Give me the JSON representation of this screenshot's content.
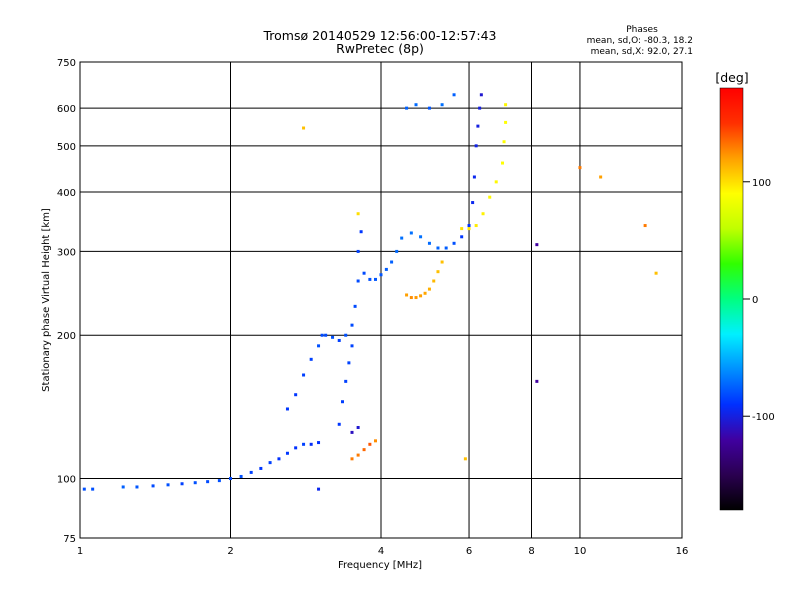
{
  "chart_data": {
    "type": "scatter",
    "title": "Tromsø 20140529 12:56:00-12:57:43",
    "subtitle": "RwPretec (8p)",
    "xlabel": "Frequency [MHz]",
    "ylabel": "Stationary phase Virtual Height [km]",
    "x_scale": "log",
    "y_scale": "log",
    "xlim": [
      1,
      16
    ],
    "ylim": [
      75,
      750
    ],
    "x_ticks": [
      1,
      2,
      4,
      6,
      8,
      10,
      16
    ],
    "y_ticks": [
      75,
      100,
      200,
      300,
      400,
      500,
      600,
      750
    ],
    "grid": true,
    "stats": {
      "heading": "Phases",
      "line_o": "mean, sd,O: -80.3, 18.2",
      "line_x": "mean, sd,X:  92.0, 27.1"
    },
    "colorbar": {
      "label": "[deg]",
      "range": [
        -180,
        180
      ],
      "ticks": [
        "100",
        "0",
        "-100"
      ],
      "tick_values": [
        100,
        0,
        -100
      ],
      "colors": [
        "#000000",
        "#2a0050",
        "#4000a0",
        "#0030ff",
        "#0090ff",
        "#00f0ff",
        "#00ff80",
        "#30ff00",
        "#c0ff00",
        "#ffff00",
        "#ffa000",
        "#ff3000",
        "#ff0000"
      ]
    },
    "series": [
      {
        "points": [
          [
            1.02,
            95,
            -80
          ],
          [
            1.06,
            95,
            -80
          ],
          [
            1.22,
            96,
            -75
          ],
          [
            1.3,
            96,
            -78
          ],
          [
            1.4,
            96.5,
            -82
          ],
          [
            1.5,
            97,
            -80
          ],
          [
            1.6,
            97.5,
            -85
          ],
          [
            1.7,
            98,
            -80
          ],
          [
            1.8,
            98.5,
            -82
          ],
          [
            1.9,
            99,
            -80
          ],
          [
            2.0,
            100,
            -82
          ],
          [
            2.1,
            101,
            -80
          ],
          [
            2.2,
            103,
            -85
          ],
          [
            2.3,
            105,
            -88
          ],
          [
            2.4,
            108,
            -85
          ],
          [
            2.5,
            110,
            -90
          ],
          [
            2.6,
            113,
            -88
          ],
          [
            2.7,
            116,
            -90
          ],
          [
            2.8,
            118,
            -85
          ],
          [
            2.9,
            118,
            -92
          ],
          [
            3.0,
            119,
            -90
          ],
          [
            2.6,
            140,
            -88
          ],
          [
            2.7,
            150,
            -88
          ],
          [
            2.8,
            165,
            -85
          ],
          [
            2.9,
            178,
            -85
          ],
          [
            3.0,
            190,
            -80
          ],
          [
            3.05,
            200,
            -82
          ],
          [
            3.1,
            200,
            -82
          ],
          [
            3.2,
            198,
            -80
          ],
          [
            3.3,
            195,
            -85
          ],
          [
            3.4,
            200,
            -80
          ],
          [
            3.3,
            130,
            -88
          ],
          [
            3.35,
            145,
            -86
          ],
          [
            3.4,
            160,
            -85
          ],
          [
            3.45,
            175,
            -84
          ],
          [
            3.5,
            190,
            -84
          ],
          [
            3.5,
            210,
            -82
          ],
          [
            3.55,
            230,
            -82
          ],
          [
            3.6,
            260,
            -82
          ],
          [
            3.6,
            300,
            -85
          ],
          [
            3.65,
            330,
            -88
          ],
          [
            3.7,
            270,
            -82
          ],
          [
            3.8,
            262,
            -80
          ],
          [
            3.9,
            262,
            -78
          ],
          [
            4.0,
            268,
            -78
          ],
          [
            4.1,
            275,
            -76
          ],
          [
            4.2,
            285,
            -75
          ],
          [
            4.3,
            300,
            -72
          ],
          [
            4.4,
            320,
            -70
          ],
          [
            4.6,
            328,
            -70
          ],
          [
            4.8,
            322,
            -70
          ],
          [
            5.0,
            312,
            -72
          ],
          [
            5.2,
            305,
            -74
          ],
          [
            5.4,
            305,
            -76
          ],
          [
            5.6,
            312,
            -80
          ],
          [
            5.8,
            322,
            -88
          ],
          [
            6.0,
            340,
            -90
          ],
          [
            6.1,
            380,
            -95
          ],
          [
            6.15,
            430,
            -95
          ],
          [
            6.2,
            500,
            -98
          ],
          [
            6.25,
            550,
            -100
          ],
          [
            6.3,
            600,
            -100
          ],
          [
            6.35,
            640,
            -105
          ],
          [
            4.5,
            600,
            -75
          ],
          [
            4.7,
            610,
            -72
          ],
          [
            5.0,
            600,
            -78
          ],
          [
            5.3,
            610,
            -70
          ],
          [
            5.6,
            640,
            -75
          ],
          [
            3.0,
            95,
            -95
          ],
          [
            3.5,
            125,
            -110
          ],
          [
            3.6,
            128,
            -105
          ],
          [
            8.2,
            160,
            -120
          ],
          [
            8.2,
            310,
            -120
          ]
        ]
      },
      {
        "points": [
          [
            4.5,
            243,
            120
          ],
          [
            4.6,
            240,
            125
          ],
          [
            4.7,
            240,
            122
          ],
          [
            4.8,
            242,
            120
          ],
          [
            4.9,
            245,
            118
          ],
          [
            5.0,
            250,
            115
          ],
          [
            5.1,
            260,
            112
          ],
          [
            5.2,
            272,
            110
          ],
          [
            5.3,
            285,
            110
          ],
          [
            3.5,
            110,
            130
          ],
          [
            3.6,
            112,
            130
          ],
          [
            3.7,
            115,
            135
          ],
          [
            3.8,
            118,
            140
          ],
          [
            3.9,
            120,
            125
          ],
          [
            5.8,
            335,
            100
          ],
          [
            6.0,
            335,
            98
          ],
          [
            6.2,
            340,
            96
          ],
          [
            6.4,
            360,
            94
          ],
          [
            6.6,
            390,
            92
          ],
          [
            6.8,
            420,
            92
          ],
          [
            7.0,
            460,
            90
          ],
          [
            7.05,
            510,
            90
          ],
          [
            7.1,
            560,
            90
          ],
          [
            7.1,
            610,
            92
          ],
          [
            2.8,
            545,
            110
          ],
          [
            3.6,
            360,
            100
          ],
          [
            5.9,
            110,
            110
          ],
          [
            10.0,
            450,
            130
          ],
          [
            11.0,
            430,
            120
          ],
          [
            13.5,
            340,
            130
          ],
          [
            14.2,
            270,
            110
          ]
        ]
      }
    ]
  }
}
